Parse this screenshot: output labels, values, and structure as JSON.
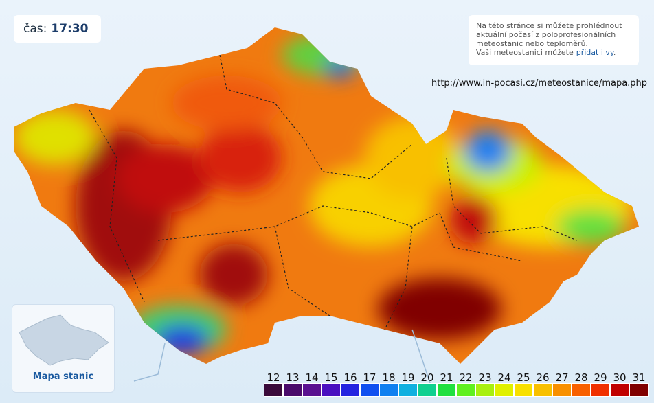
{
  "time": {
    "label": "čas:",
    "value": "17:30"
  },
  "info": {
    "lines": [
      "Na této stránce si můžete prohlédnout",
      "aktuální počasí z poloprofesionálních",
      "meteostanic nebo teploměrů."
    ],
    "last_line": "Vaši meteostanici můžete",
    "link": "přidat i vy",
    "after": "."
  },
  "url": "http://www.in-pocasi.cz/meteostanice/mapa.php",
  "inset": {
    "label": "Mapa stanic"
  },
  "legend": {
    "values": [
      12,
      13,
      14,
      15,
      16,
      17,
      18,
      19,
      20,
      21,
      22,
      23,
      24,
      25,
      26,
      27,
      28,
      29,
      30,
      31
    ],
    "colors": [
      "#3a0a3a",
      "#4a0a6a",
      "#5a1090",
      "#4a10c0",
      "#2424e0",
      "#1050f0",
      "#1080f0",
      "#10b0e0",
      "#10d090",
      "#20e040",
      "#60f020",
      "#a8f010",
      "#e0f000",
      "#f8e000",
      "#f8c000",
      "#f89000",
      "#f86000",
      "#f03000",
      "#c00000",
      "#800000"
    ]
  }
}
